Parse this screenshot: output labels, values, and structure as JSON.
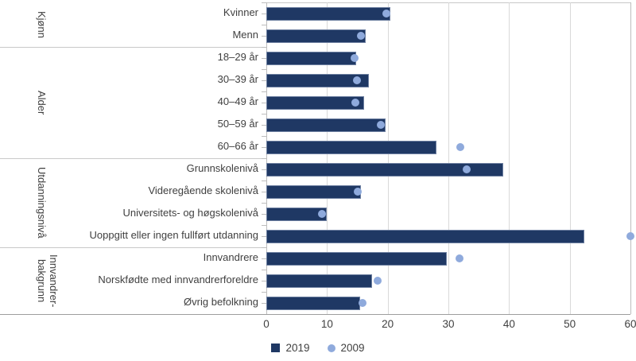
{
  "chart_data": {
    "type": "bar",
    "orientation": "horizontal",
    "title": "",
    "xlabel": "",
    "ylabel": "",
    "x_axis": {
      "min": 0,
      "max": 60,
      "ticks": [
        0,
        10,
        20,
        30,
        40,
        50,
        60
      ],
      "grid": true
    },
    "legend": [
      {
        "name": "2019",
        "marker": "square",
        "color": "#1f3864"
      },
      {
        "name": "2009",
        "marker": "circle",
        "color": "#8faadc"
      }
    ],
    "series_note": "2019 shown as navy bars, 2009 shown as light blue dots",
    "groups": [
      {
        "label": "Kjønn",
        "categories": [
          {
            "label": "Kvinner",
            "v2019": 20.4,
            "v2009": 19.8
          },
          {
            "label": "Menn",
            "v2019": 16.4,
            "v2009": 15.6
          }
        ]
      },
      {
        "label": "Alder",
        "categories": [
          {
            "label": "18–29 år",
            "v2019": 14.8,
            "v2009": 14.5
          },
          {
            "label": "30–39 år",
            "v2019": 16.9,
            "v2009": 14.9
          },
          {
            "label": "40–49 år",
            "v2019": 16.1,
            "v2009": 14.7
          },
          {
            "label": "50–59 år",
            "v2019": 19.7,
            "v2009": 18.9
          },
          {
            "label": "60–66 år",
            "v2019": 28.0,
            "v2009": 31.9
          }
        ]
      },
      {
        "label": "Utdanningsnivå",
        "categories": [
          {
            "label": "Grunnskolenivå",
            "v2019": 39.0,
            "v2009": 33.0
          },
          {
            "label": "Videregående skolenivå",
            "v2019": 15.6,
            "v2009": 15.0
          },
          {
            "label": "Universitets- og høgskolenivå",
            "v2019": 10.0,
            "v2009": 9.2
          },
          {
            "label": "Uoppgitt eller ingen fullført utdanning",
            "v2019": 52.4,
            "v2009": 60.0
          }
        ]
      },
      {
        "label": "Innvandrer-\nbakgrunn",
        "categories": [
          {
            "label": "Innvandrere",
            "v2019": 29.7,
            "v2009": 31.8
          },
          {
            "label": "Norskfødte med innvandrerforeldre",
            "v2019": 17.4,
            "v2009": 18.3
          },
          {
            "label": "Øvrig befolkning",
            "v2019": 15.5,
            "v2009": 15.9
          }
        ]
      }
    ],
    "colors": {
      "bar_2019": "#1f3864",
      "dot_2009": "#8faadc",
      "gridline": "#d9d9d9",
      "axis": "#9e9e9e",
      "text": "#404040"
    }
  }
}
